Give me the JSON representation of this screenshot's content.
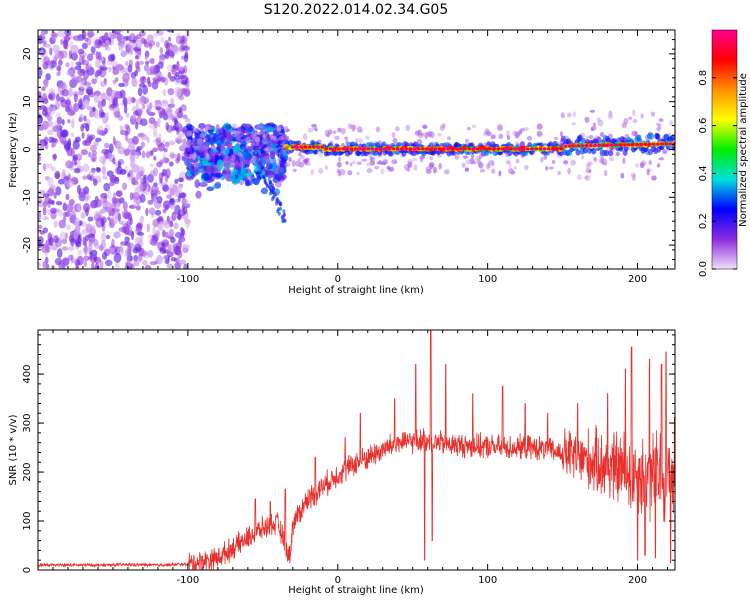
{
  "figure_title": "S120.2022.014.02.34.G05",
  "chart_data": [
    {
      "type": "heatmap",
      "title": "",
      "xlabel": "Height of straight line (km)",
      "ylabel": "Frequency (Hz)",
      "xlim": [
        -200,
        225
      ],
      "ylim": [
        -25,
        25
      ],
      "xticks": [
        -100,
        0,
        100,
        200
      ],
      "yticks": [
        -20,
        -10,
        0,
        10,
        20
      ],
      "grid": false,
      "colorbar": {
        "label": "Normalized spectral amplitude",
        "range": [
          0,
          1
        ],
        "ticks": [
          0.0,
          0.2,
          0.4,
          0.6,
          0.8
        ],
        "tick_labels": [
          "0.0",
          "0.2",
          "0.4",
          "0.6",
          "0.8"
        ],
        "colormap": [
          "#f0e0f8",
          "#8c2be0",
          "#0000ff",
          "#00e0e0",
          "#00ee00",
          "#ffff00",
          "#ff9000",
          "#ff0000",
          "#ff0090"
        ]
      },
      "regions": [
        {
          "x_range": [
            -200,
            -100
          ],
          "frequency_range": [
            -25,
            25
          ],
          "amplitude": "low (~0.05-0.15), broadband scatter"
        },
        {
          "x_range": [
            -100,
            -35
          ],
          "frequency_range": [
            -17,
            6
          ],
          "amplitude": "medium (~0.1-0.35), descending branch to -15 Hz near x=-40"
        },
        {
          "x_range": [
            -35,
            150
          ],
          "frequency_range": [
            -1,
            1.5
          ],
          "amplitude": "high (~0.7-1.0), narrow line near 0 Hz"
        },
        {
          "x_range": [
            150,
            225
          ],
          "frequency_range": [
            -2,
            4
          ],
          "amplitude": "medium-high (~0.4-0.9), line centred near +1 Hz"
        }
      ]
    },
    {
      "type": "line",
      "title": "",
      "xlabel": "Height of straight line (km)",
      "ylabel": "SNR (10 * v/v)",
      "xlim": [
        -200,
        225
      ],
      "ylim": [
        0,
        490
      ],
      "xticks": [
        -100,
        0,
        100,
        200
      ],
      "yticks": [
        0,
        100,
        200,
        300,
        400
      ],
      "grid": false,
      "series": [
        {
          "color": "#e8312d",
          "points": [
            [
              -200,
              10
            ],
            [
              -180,
              10
            ],
            [
              -160,
              10
            ],
            [
              -140,
              11
            ],
            [
              -120,
              10
            ],
            [
              -100,
              12
            ],
            [
              -90,
              18
            ],
            [
              -80,
              25
            ],
            [
              -70,
              45
            ],
            [
              -60,
              65
            ],
            [
              -50,
              85
            ],
            [
              -40,
              95
            ],
            [
              -32,
              25
            ],
            [
              -30,
              95
            ],
            [
              -20,
              145
            ],
            [
              -10,
              170
            ],
            [
              0,
              195
            ],
            [
              10,
              215
            ],
            [
              20,
              230
            ],
            [
              30,
              245
            ],
            [
              40,
              260
            ],
            [
              50,
              262
            ],
            [
              60,
              265
            ],
            [
              70,
              258
            ],
            [
              80,
              255
            ],
            [
              90,
              253
            ],
            [
              100,
              252
            ],
            [
              110,
              250
            ],
            [
              120,
              250
            ],
            [
              130,
              250
            ],
            [
              140,
              245
            ],
            [
              150,
              238
            ],
            [
              160,
              230
            ],
            [
              170,
              222
            ],
            [
              180,
              212
            ],
            [
              190,
              205
            ],
            [
              200,
              195
            ],
            [
              210,
              190
            ],
            [
              220,
              190
            ],
            [
              225,
              200
            ]
          ],
          "spikes": [
            [
              -55,
              145
            ],
            [
              -45,
              140
            ],
            [
              -35,
              165
            ],
            [
              -15,
              230
            ],
            [
              5,
              270
            ],
            [
              15,
              320
            ],
            [
              38,
              350
            ],
            [
              45,
              280
            ],
            [
              52,
              420
            ],
            [
              58,
              20
            ],
            [
              62,
              490
            ],
            [
              63,
              60
            ],
            [
              72,
              420
            ],
            [
              90,
              360
            ],
            [
              110,
              375
            ],
            [
              125,
              340
            ],
            [
              140,
              320
            ],
            [
              160,
              340
            ],
            [
              180,
              360
            ],
            [
              192,
              410
            ],
            [
              196,
              455
            ],
            [
              200,
              20
            ],
            [
              205,
              30
            ],
            [
              208,
              430
            ],
            [
              212,
              25
            ],
            [
              216,
              420
            ],
            [
              219,
              445
            ],
            [
              222,
              15
            ]
          ]
        }
      ]
    }
  ]
}
